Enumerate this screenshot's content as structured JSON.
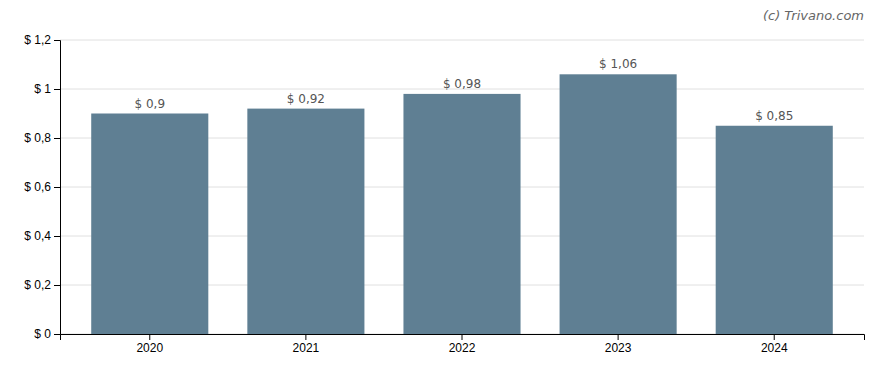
{
  "chart_data": {
    "type": "bar",
    "categories": [
      "2020",
      "2021",
      "2022",
      "2023",
      "2024"
    ],
    "values": [
      0.9,
      0.92,
      0.98,
      1.06,
      0.85
    ],
    "value_labels": [
      "$ 0,9",
      "$ 0,92",
      "$ 0,98",
      "$ 1,06",
      "$ 0,85"
    ],
    "data_labels": true,
    "color": "#5f7f93",
    "ylim": [
      0,
      1.2
    ],
    "yticks": [
      {
        "value": 0,
        "label": "$ 0"
      },
      {
        "value": 0.2,
        "label": "$ 0,2"
      },
      {
        "value": 0.4,
        "label": "$ 0,4"
      },
      {
        "value": 0.6,
        "label": "$ 0,6"
      },
      {
        "value": 0.8,
        "label": "$ 0,8"
      },
      {
        "value": 1.0,
        "label": "$ 1"
      },
      {
        "value": 1.2,
        "label": "$ 1,2"
      }
    ],
    "grid": true,
    "annotation": "(c) Trivano.com"
  }
}
